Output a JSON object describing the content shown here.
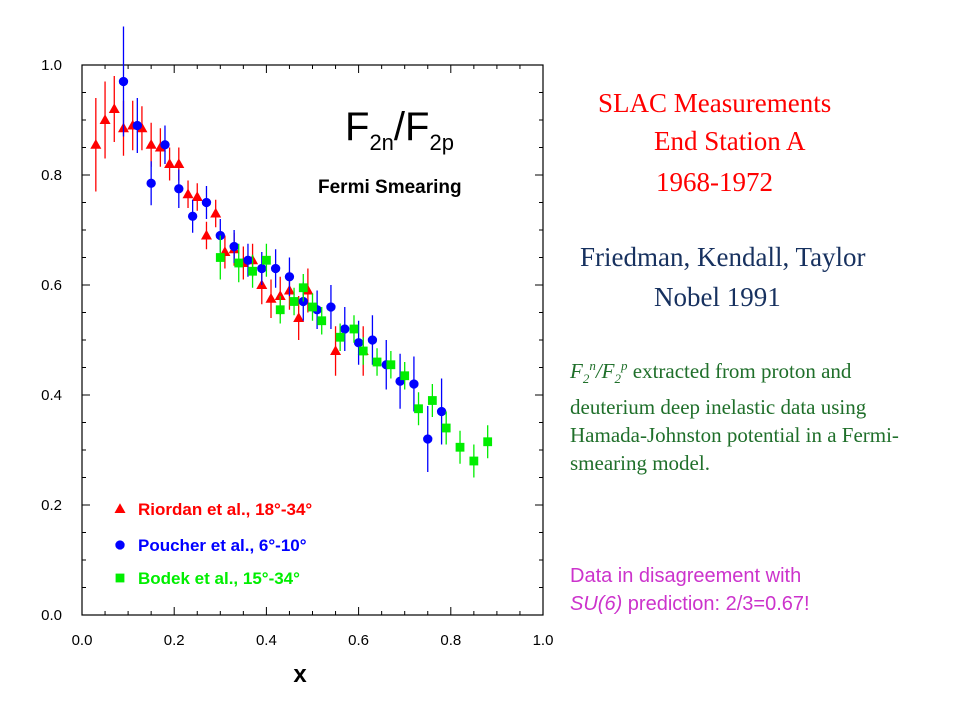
{
  "chart_data": {
    "type": "scatter",
    "title": "F2n/F2p",
    "subtitle": "Fermi Smearing",
    "xlabel": "x",
    "ylabel": "",
    "xlim": [
      0.0,
      1.0
    ],
    "ylim": [
      0.0,
      1.0
    ],
    "xticks": [
      "0.0",
      "0.2",
      "0.4",
      "0.6",
      "0.8",
      "1.0"
    ],
    "yticks": [
      "0.0",
      "0.2",
      "0.4",
      "0.6",
      "0.8",
      "1.0"
    ],
    "grid": false,
    "legend_position": "bottom-left",
    "series": [
      {
        "name": "Riordan et al., 18°-34°",
        "marker": "triangle",
        "color": "#ff0000",
        "points": [
          {
            "x": 0.03,
            "y": 0.855,
            "err": 0.085
          },
          {
            "x": 0.05,
            "y": 0.9,
            "err": 0.07
          },
          {
            "x": 0.07,
            "y": 0.92,
            "err": 0.06
          },
          {
            "x": 0.09,
            "y": 0.885,
            "err": 0.05
          },
          {
            "x": 0.11,
            "y": 0.89,
            "err": 0.045
          },
          {
            "x": 0.13,
            "y": 0.885,
            "err": 0.04
          },
          {
            "x": 0.15,
            "y": 0.855,
            "err": 0.04
          },
          {
            "x": 0.17,
            "y": 0.85,
            "err": 0.035
          },
          {
            "x": 0.19,
            "y": 0.82,
            "err": 0.03
          },
          {
            "x": 0.21,
            "y": 0.82,
            "err": 0.03
          },
          {
            "x": 0.23,
            "y": 0.765,
            "err": 0.025
          },
          {
            "x": 0.25,
            "y": 0.76,
            "err": 0.025
          },
          {
            "x": 0.27,
            "y": 0.69,
            "err": 0.025
          },
          {
            "x": 0.29,
            "y": 0.73,
            "err": 0.025
          },
          {
            "x": 0.31,
            "y": 0.66,
            "err": 0.03
          },
          {
            "x": 0.33,
            "y": 0.665,
            "err": 0.03
          },
          {
            "x": 0.35,
            "y": 0.64,
            "err": 0.03
          },
          {
            "x": 0.37,
            "y": 0.645,
            "err": 0.03
          },
          {
            "x": 0.39,
            "y": 0.6,
            "err": 0.035
          },
          {
            "x": 0.41,
            "y": 0.575,
            "err": 0.035
          },
          {
            "x": 0.43,
            "y": 0.58,
            "err": 0.035
          },
          {
            "x": 0.45,
            "y": 0.59,
            "err": 0.035
          },
          {
            "x": 0.47,
            "y": 0.54,
            "err": 0.04
          },
          {
            "x": 0.49,
            "y": 0.59,
            "err": 0.04
          },
          {
            "x": 0.55,
            "y": 0.48,
            "err": 0.045
          },
          {
            "x": 0.61,
            "y": 0.48,
            "err": 0.045
          }
        ]
      },
      {
        "name": "Poucher et al., 6°-10°",
        "marker": "circle",
        "color": "#0000ff",
        "points": [
          {
            "x": 0.09,
            "y": 0.97,
            "err": 0.1
          },
          {
            "x": 0.12,
            "y": 0.89,
            "err": 0.05
          },
          {
            "x": 0.15,
            "y": 0.785,
            "err": 0.04
          },
          {
            "x": 0.18,
            "y": 0.855,
            "err": 0.035
          },
          {
            "x": 0.21,
            "y": 0.775,
            "err": 0.035
          },
          {
            "x": 0.24,
            "y": 0.725,
            "err": 0.03
          },
          {
            "x": 0.27,
            "y": 0.75,
            "err": 0.03
          },
          {
            "x": 0.3,
            "y": 0.69,
            "err": 0.03
          },
          {
            "x": 0.33,
            "y": 0.67,
            "err": 0.03
          },
          {
            "x": 0.36,
            "y": 0.645,
            "err": 0.03
          },
          {
            "x": 0.39,
            "y": 0.63,
            "err": 0.03
          },
          {
            "x": 0.42,
            "y": 0.63,
            "err": 0.035
          },
          {
            "x": 0.45,
            "y": 0.615,
            "err": 0.035
          },
          {
            "x": 0.48,
            "y": 0.57,
            "err": 0.035
          },
          {
            "x": 0.51,
            "y": 0.555,
            "err": 0.035
          },
          {
            "x": 0.54,
            "y": 0.56,
            "err": 0.04
          },
          {
            "x": 0.57,
            "y": 0.52,
            "err": 0.04
          },
          {
            "x": 0.6,
            "y": 0.495,
            "err": 0.04
          },
          {
            "x": 0.63,
            "y": 0.5,
            "err": 0.045
          },
          {
            "x": 0.66,
            "y": 0.455,
            "err": 0.045
          },
          {
            "x": 0.69,
            "y": 0.425,
            "err": 0.05
          },
          {
            "x": 0.72,
            "y": 0.42,
            "err": 0.05
          },
          {
            "x": 0.75,
            "y": 0.32,
            "err": 0.06
          },
          {
            "x": 0.78,
            "y": 0.37,
            "err": 0.06
          }
        ]
      },
      {
        "name": "Bodek et al., 15°-34°",
        "marker": "square",
        "color": "#00ee00",
        "points": [
          {
            "x": 0.3,
            "y": 0.65,
            "err": 0.04
          },
          {
            "x": 0.34,
            "y": 0.64,
            "err": 0.035
          },
          {
            "x": 0.37,
            "y": 0.625,
            "err": 0.03
          },
          {
            "x": 0.4,
            "y": 0.645,
            "err": 0.03
          },
          {
            "x": 0.43,
            "y": 0.555,
            "err": 0.025
          },
          {
            "x": 0.46,
            "y": 0.57,
            "err": 0.025
          },
          {
            "x": 0.48,
            "y": 0.595,
            "err": 0.025
          },
          {
            "x": 0.5,
            "y": 0.56,
            "err": 0.025
          },
          {
            "x": 0.52,
            "y": 0.535,
            "err": 0.025
          },
          {
            "x": 0.56,
            "y": 0.505,
            "err": 0.025
          },
          {
            "x": 0.59,
            "y": 0.52,
            "err": 0.025
          },
          {
            "x": 0.61,
            "y": 0.48,
            "err": 0.025
          },
          {
            "x": 0.64,
            "y": 0.46,
            "err": 0.025
          },
          {
            "x": 0.67,
            "y": 0.455,
            "err": 0.025
          },
          {
            "x": 0.7,
            "y": 0.435,
            "err": 0.025
          },
          {
            "x": 0.73,
            "y": 0.375,
            "err": 0.03
          },
          {
            "x": 0.76,
            "y": 0.39,
            "err": 0.03
          },
          {
            "x": 0.79,
            "y": 0.34,
            "err": 0.03
          },
          {
            "x": 0.82,
            "y": 0.305,
            "err": 0.03
          },
          {
            "x": 0.85,
            "y": 0.28,
            "err": 0.03
          },
          {
            "x": 0.88,
            "y": 0.315,
            "err": 0.03
          }
        ]
      }
    ]
  },
  "panel": {
    "slac_title": "SLAC Measurements",
    "slac_station": "End Station A",
    "slac_years": "1968-1972",
    "authors": "Friedman, Kendall, Taylor",
    "nobel": "Nobel 1991",
    "description_text": "extracted from proton and deuterium deep inelastic data using Hamada-Johnston potential in a Fermi-smearing model.",
    "note_line1": "Data in disagreement with",
    "note_su6": "SU(6)",
    "note_rest": "prediction: 2/3=0.67!"
  },
  "colors": {
    "title_red": "#ff0000",
    "navy": "#17315f",
    "green_text": "#1f6f2a",
    "magenta": "#cc33cc"
  }
}
